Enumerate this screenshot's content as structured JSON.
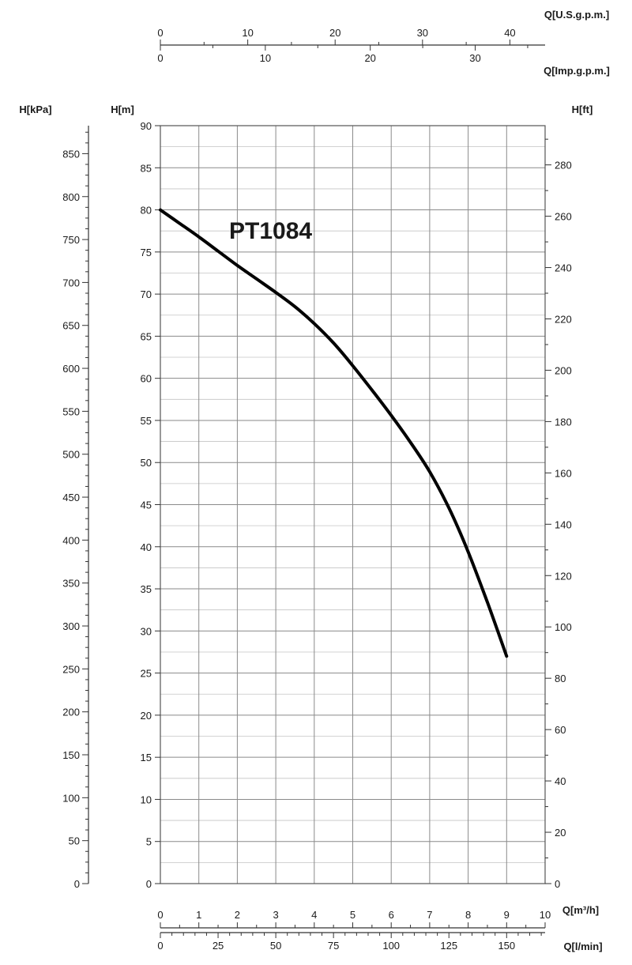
{
  "chart_data": {
    "type": "line",
    "title": "",
    "curve_label": "PT1084",
    "series": [
      {
        "name": "PT1084",
        "x": [
          0,
          0.5,
          1,
          1.5,
          2,
          2.5,
          3,
          3.5,
          4,
          4.5,
          5,
          5.5,
          6,
          6.5,
          7,
          7.5,
          8,
          8.5,
          9
        ],
        "y": [
          80,
          78.4,
          76.8,
          75.1,
          73.4,
          71.8,
          70.2,
          68.5,
          66.5,
          64.2,
          61.5,
          58.6,
          55.6,
          52.4,
          48.9,
          44.6,
          39.4,
          33.4,
          27.0
        ]
      }
    ],
    "axes": {
      "q_m3h": {
        "label": "Q[m³/h]",
        "min": 0,
        "max": 10,
        "ticks": [
          0,
          1,
          2,
          3,
          4,
          5,
          6,
          7,
          8,
          9,
          10
        ]
      },
      "q_lmin": {
        "label": "Q[l/min]",
        "min": 0,
        "max": 166.667,
        "ticks": [
          0,
          25,
          50,
          75,
          100,
          125,
          150
        ]
      },
      "q_usgpm": {
        "label": "Q[U.S.g.p.m.]",
        "min": 0,
        "max": 44.03,
        "ticks": [
          0,
          10,
          20,
          30,
          40
        ]
      },
      "q_impgpm": {
        "label": "Q[Imp.g.p.m.]",
        "min": 0,
        "max": 36.66,
        "ticks": [
          0,
          10,
          20,
          30
        ]
      },
      "h_m": {
        "label": "H[m]",
        "min": 0,
        "max": 90,
        "ticks": [
          0,
          5,
          10,
          15,
          20,
          25,
          30,
          35,
          40,
          45,
          50,
          55,
          60,
          65,
          70,
          75,
          80,
          85,
          90
        ]
      },
      "h_kpa": {
        "label": "H[kPa]",
        "min": 0,
        "max": 882.6,
        "ticks": [
          0,
          50,
          100,
          150,
          200,
          250,
          300,
          350,
          400,
          450,
          500,
          550,
          600,
          650,
          700,
          750,
          800,
          850
        ]
      },
      "h_ft": {
        "label": "H[ft]",
        "min": 0,
        "max": 295.28,
        "ticks": [
          0,
          20,
          40,
          60,
          80,
          100,
          120,
          140,
          160,
          180,
          200,
          220,
          240,
          260,
          280
        ]
      }
    },
    "grid": true,
    "legend": "none"
  }
}
